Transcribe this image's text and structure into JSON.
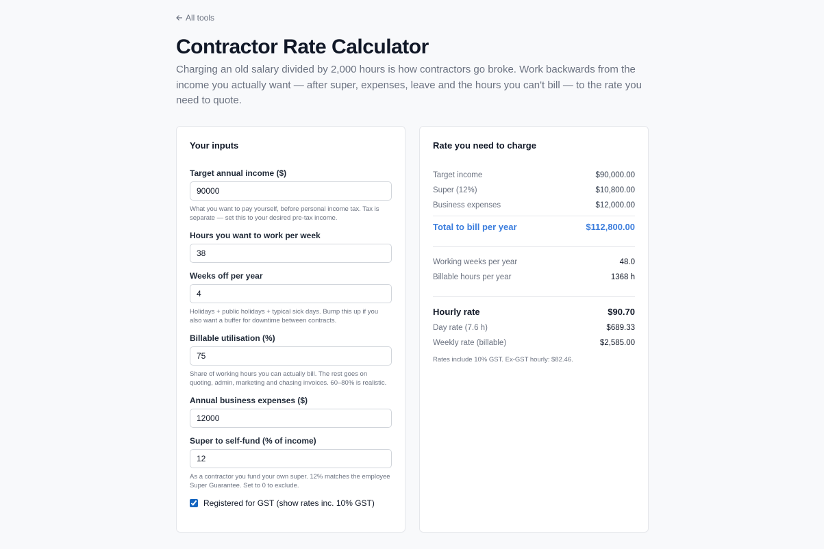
{
  "nav": {
    "back_link": "All tools"
  },
  "header": {
    "title": "Contractor Rate Calculator",
    "description": "Charging an old salary divided by 2,000 hours is how contractors go broke. Work backwards from the income you actually want — after super, expenses, leave and the hours you can't bill — to the rate you need to quote."
  },
  "inputs": {
    "title": "Your inputs",
    "fields": [
      {
        "label": "Target annual income ($)",
        "value": 90000,
        "help": "What you want to pay yourself, before personal income tax. Tax is separate — set this to your desired pre-tax income."
      },
      {
        "label": "Hours you want to work per week",
        "value": 38
      },
      {
        "label": "Weeks off per year",
        "value": 4,
        "help": "Holidays + public holidays + typical sick days. Bump this up if you also want a buffer for downtime between contracts."
      },
      {
        "label": "Billable utilisation (%)",
        "value": 75,
        "help": "Share of working hours you can actually bill. The rest goes on quoting, admin, marketing and chasing invoices. 60–80% is realistic."
      },
      {
        "label": "Annual business expenses ($)",
        "value": 12000
      },
      {
        "label": "Super to self-fund (% of income)",
        "value": 12,
        "help": "As a contractor you fund your own super. 12% matches the employee Super Guarantee. Set to 0 to exclude."
      }
    ],
    "gst": {
      "label": "Registered for GST (show rates inc. 10% GST)",
      "checked": true
    }
  },
  "results": {
    "title": "Rate you need to charge",
    "breakdown": [
      {
        "label": "Target income",
        "value": "$90,000.00"
      },
      {
        "label": "Super (12%)",
        "value": "$10,800.00"
      },
      {
        "label": "Business expenses",
        "value": "$12,000.00"
      }
    ],
    "total": {
      "label": "Total to bill per year",
      "value": "$112,800.00"
    },
    "hours": [
      {
        "label": "Working weeks per year",
        "value": "48.0"
      },
      {
        "label": "Billable hours per year",
        "value": "1368 h"
      }
    ],
    "hourly": {
      "label": "Hourly rate",
      "value": "$90.70"
    },
    "rates": [
      {
        "label": "Day rate (7.6 h)",
        "value": "$689.33"
      },
      {
        "label": "Weekly rate (billable)",
        "value": "$2,585.00"
      }
    ],
    "note": "Rates include 10% GST. Ex-GST hourly: $82.46."
  }
}
